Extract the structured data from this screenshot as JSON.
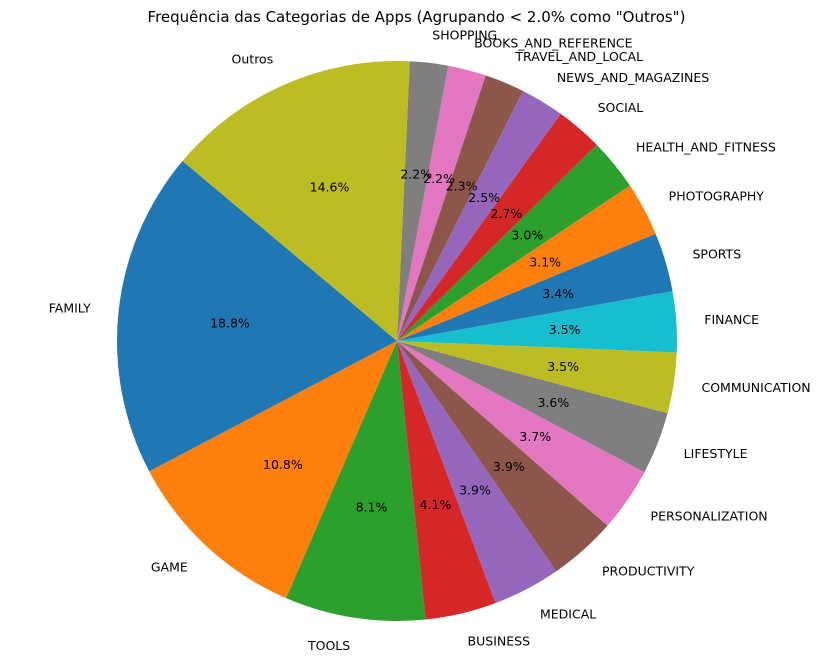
{
  "chart_data": {
    "type": "pie",
    "title": "Frequência das Categorias de Apps (Agrupando < 2.0% como \"Outros\")",
    "start_angle_deg": 140,
    "direction": "counterclockwise",
    "slices": [
      {
        "label": "FAMILY",
        "value": 18.8,
        "pct_label": "18.8%",
        "color": "#1f77b4"
      },
      {
        "label": "GAME",
        "value": 10.8,
        "pct_label": "10.8%",
        "color": "#ff7f0e"
      },
      {
        "label": "TOOLS",
        "value": 8.1,
        "pct_label": "8.1%",
        "color": "#2ca02c"
      },
      {
        "label": "BUSINESS",
        "value": 4.1,
        "pct_label": "4.1%",
        "color": "#d62728"
      },
      {
        "label": "MEDICAL",
        "value": 3.9,
        "pct_label": "3.9%",
        "color": "#9467bd"
      },
      {
        "label": "PRODUCTIVITY",
        "value": 3.9,
        "pct_label": "3.9%",
        "color": "#8c564b"
      },
      {
        "label": "PERSONALIZATION",
        "value": 3.7,
        "pct_label": "3.7%",
        "color": "#e377c2"
      },
      {
        "label": "LIFESTYLE",
        "value": 3.6,
        "pct_label": "3.6%",
        "color": "#7f7f7f"
      },
      {
        "label": "COMMUNICATION",
        "value": 3.5,
        "pct_label": "3.5%",
        "color": "#bcbd22"
      },
      {
        "label": "FINANCE",
        "value": 3.5,
        "pct_label": "3.5%",
        "color": "#17becf"
      },
      {
        "label": "SPORTS",
        "value": 3.4,
        "pct_label": "3.4%",
        "color": "#1f77b4"
      },
      {
        "label": "PHOTOGRAPHY",
        "value": 3.1,
        "pct_label": "3.1%",
        "color": "#ff7f0e"
      },
      {
        "label": "HEALTH_AND_FITNESS",
        "value": 3.0,
        "pct_label": "3.0%",
        "color": "#2ca02c"
      },
      {
        "label": "SOCIAL",
        "value": 2.7,
        "pct_label": "2.7%",
        "color": "#d62728"
      },
      {
        "label": "NEWS_AND_MAGAZINES",
        "value": 2.5,
        "pct_label": "2.5%",
        "color": "#9467bd"
      },
      {
        "label": "TRAVEL_AND_LOCAL",
        "value": 2.3,
        "pct_label": "2.3%",
        "color": "#8c564b"
      },
      {
        "label": "BOOKS_AND_REFERENCE",
        "value": 2.2,
        "pct_label": "2.2%",
        "color": "#e377c2"
      },
      {
        "label": "SHOPPING",
        "value": 2.2,
        "pct_label": "2.2%",
        "color": "#7f7f7f"
      },
      {
        "label": "Outros",
        "value": 14.6,
        "pct_label": "14.6%",
        "color": "#bcbd22"
      }
    ]
  }
}
